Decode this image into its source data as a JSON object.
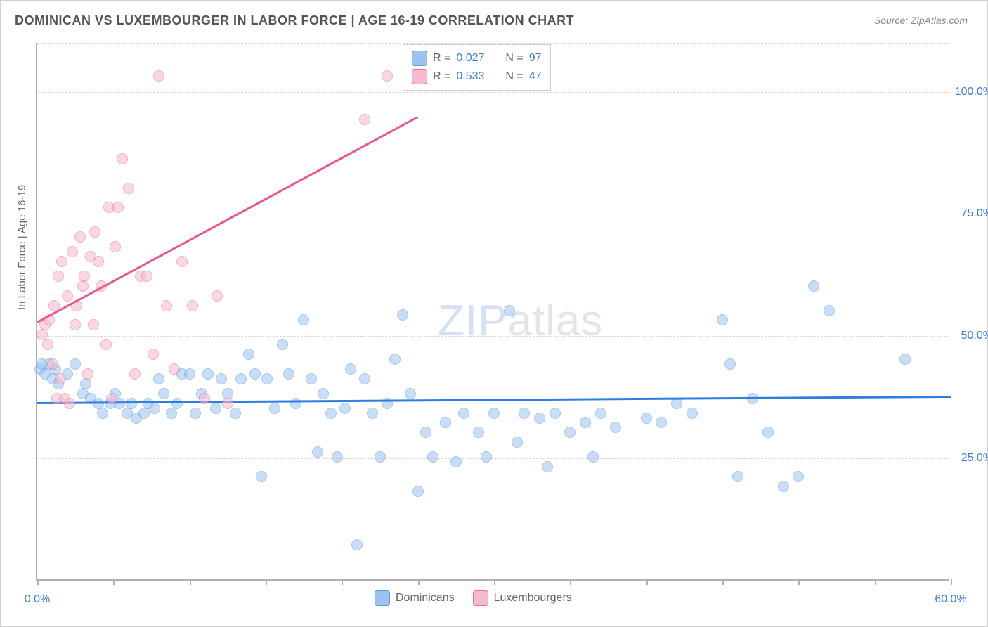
{
  "title": "DOMINICAN VS LUXEMBOURGER IN LABOR FORCE | AGE 16-19 CORRELATION CHART",
  "source": "Source: ZipAtlas.com",
  "ylabel": "In Labor Force | Age 16-19",
  "watermark_a": "ZIP",
  "watermark_b": "atlas",
  "chart": {
    "type": "scatter-with-trend",
    "background_color": "#ffffff",
    "grid_color": "#d8d8d8",
    "axis_color": "#b0b0b0",
    "xlim": [
      0,
      60
    ],
    "ylim": [
      0,
      110
    ],
    "x_ticks": [
      0,
      5,
      10,
      15,
      20,
      25,
      30,
      35,
      40,
      45,
      50,
      55,
      60
    ],
    "x_tick_labels": [
      {
        "v": 0,
        "label": "0.0%"
      },
      {
        "v": 60,
        "label": "60.0%"
      }
    ],
    "y_gridlines": [
      25,
      50,
      75,
      100,
      110
    ],
    "y_tick_labels": [
      {
        "v": 25,
        "label": "25.0%"
      },
      {
        "v": 50,
        "label": "50.0%"
      },
      {
        "v": 75,
        "label": "75.0%"
      },
      {
        "v": 100,
        "label": "100.0%"
      }
    ],
    "marker_radius": 8,
    "marker_opacity": 0.55,
    "series": [
      {
        "name": "Dominicans",
        "fill": "#9cc3f0",
        "stroke": "#5a9be0",
        "trend_color": "#2f7de0",
        "trend": {
          "x1": 0,
          "y1": 36.5,
          "x2": 60,
          "y2": 37.8
        },
        "stats": {
          "R": "0.027",
          "N": "97"
        },
        "points": [
          [
            0.2,
            43
          ],
          [
            0.3,
            44
          ],
          [
            0.5,
            42
          ],
          [
            0.8,
            44
          ],
          [
            1.0,
            41
          ],
          [
            1.2,
            43
          ],
          [
            1.4,
            40
          ],
          [
            2.0,
            42
          ],
          [
            2.5,
            44
          ],
          [
            3.0,
            38
          ],
          [
            3.2,
            40
          ],
          [
            3.5,
            37
          ],
          [
            4.0,
            36
          ],
          [
            4.3,
            34
          ],
          [
            4.8,
            36
          ],
          [
            5.1,
            38
          ],
          [
            5.4,
            36
          ],
          [
            5.9,
            34
          ],
          [
            6.2,
            36
          ],
          [
            6.5,
            33
          ],
          [
            7.0,
            34
          ],
          [
            7.3,
            36
          ],
          [
            7.7,
            35
          ],
          [
            8.0,
            41
          ],
          [
            8.3,
            38
          ],
          [
            8.8,
            34
          ],
          [
            9.2,
            36
          ],
          [
            9.5,
            42
          ],
          [
            10.0,
            42
          ],
          [
            10.4,
            34
          ],
          [
            10.8,
            38
          ],
          [
            11.2,
            42
          ],
          [
            11.7,
            35
          ],
          [
            12.1,
            41
          ],
          [
            12.5,
            38
          ],
          [
            13.0,
            34
          ],
          [
            13.4,
            41
          ],
          [
            13.9,
            46
          ],
          [
            14.3,
            42
          ],
          [
            14.7,
            21
          ],
          [
            15.1,
            41
          ],
          [
            15.6,
            35
          ],
          [
            16.1,
            48
          ],
          [
            16.5,
            42
          ],
          [
            17.0,
            36
          ],
          [
            17.5,
            53
          ],
          [
            18.0,
            41
          ],
          [
            18.4,
            26
          ],
          [
            18.8,
            38
          ],
          [
            19.3,
            34
          ],
          [
            19.7,
            25
          ],
          [
            20.2,
            35
          ],
          [
            20.6,
            43
          ],
          [
            21.0,
            7
          ],
          [
            21.5,
            41
          ],
          [
            22.0,
            34
          ],
          [
            22.5,
            25
          ],
          [
            23.0,
            36
          ],
          [
            23.5,
            45
          ],
          [
            24.0,
            54
          ],
          [
            24.5,
            38
          ],
          [
            25.0,
            18
          ],
          [
            25.5,
            30
          ],
          [
            26.0,
            25
          ],
          [
            26.8,
            32
          ],
          [
            27.5,
            24
          ],
          [
            28.0,
            34
          ],
          [
            29.0,
            30
          ],
          [
            29.5,
            25
          ],
          [
            30.0,
            34
          ],
          [
            31.0,
            55
          ],
          [
            31.5,
            28
          ],
          [
            32.0,
            34
          ],
          [
            33.0,
            33
          ],
          [
            33.5,
            23
          ],
          [
            34.0,
            34
          ],
          [
            35.0,
            30
          ],
          [
            36.0,
            32
          ],
          [
            36.5,
            25
          ],
          [
            37.0,
            34
          ],
          [
            38.0,
            31
          ],
          [
            40.0,
            33
          ],
          [
            41.0,
            32
          ],
          [
            42.0,
            36
          ],
          [
            43.0,
            34
          ],
          [
            45.0,
            53
          ],
          [
            45.5,
            44
          ],
          [
            46.0,
            21
          ],
          [
            47.0,
            37
          ],
          [
            48.0,
            30
          ],
          [
            49.0,
            19
          ],
          [
            50.0,
            21
          ],
          [
            51.0,
            60
          ],
          [
            52.0,
            55
          ],
          [
            57.0,
            45
          ]
        ]
      },
      {
        "name": "Luxembourgers",
        "fill": "#f7b9cd",
        "stroke": "#ec6b98",
        "trend_color": "#ec5690",
        "trend": {
          "x1": 0,
          "y1": 53,
          "x2": 25,
          "y2": 95
        },
        "stats": {
          "R": "0.533",
          "N": "47"
        },
        "points": [
          [
            0.3,
            50
          ],
          [
            0.5,
            52
          ],
          [
            0.7,
            48
          ],
          [
            0.8,
            53
          ],
          [
            1.0,
            44
          ],
          [
            1.1,
            56
          ],
          [
            1.3,
            37
          ],
          [
            1.4,
            62
          ],
          [
            1.5,
            41
          ],
          [
            1.6,
            65
          ],
          [
            1.8,
            37
          ],
          [
            2.0,
            58
          ],
          [
            2.1,
            36
          ],
          [
            2.3,
            67
          ],
          [
            2.5,
            52
          ],
          [
            2.6,
            56
          ],
          [
            2.8,
            70
          ],
          [
            3.0,
            60
          ],
          [
            3.1,
            62
          ],
          [
            3.3,
            42
          ],
          [
            3.5,
            66
          ],
          [
            3.7,
            52
          ],
          [
            3.8,
            71
          ],
          [
            4.0,
            65
          ],
          [
            4.2,
            60
          ],
          [
            4.5,
            48
          ],
          [
            4.7,
            76
          ],
          [
            4.9,
            37
          ],
          [
            5.1,
            68
          ],
          [
            5.3,
            76
          ],
          [
            5.6,
            86
          ],
          [
            6.0,
            80
          ],
          [
            6.4,
            42
          ],
          [
            6.8,
            62
          ],
          [
            7.2,
            62
          ],
          [
            7.6,
            46
          ],
          [
            8.0,
            103
          ],
          [
            8.5,
            56
          ],
          [
            9.0,
            43
          ],
          [
            9.5,
            65
          ],
          [
            10.2,
            56
          ],
          [
            11.0,
            37
          ],
          [
            11.8,
            58
          ],
          [
            12.5,
            36
          ],
          [
            21.5,
            94
          ],
          [
            23.0,
            103
          ]
        ]
      }
    ]
  },
  "legend_box": {
    "rows": [
      {
        "swatch_fill": "#9cc3f0",
        "swatch_stroke": "#5a9be0",
        "r_label": "R =",
        "r": "0.027",
        "n_label": "N =",
        "n": "97"
      },
      {
        "swatch_fill": "#f7b9cd",
        "swatch_stroke": "#ec6b98",
        "r_label": "R =",
        "r": "0.533",
        "n_label": "N =",
        "n": "47"
      }
    ]
  },
  "bottom_legend": [
    {
      "swatch_fill": "#9cc3f0",
      "swatch_stroke": "#5a9be0",
      "label": "Dominicans"
    },
    {
      "swatch_fill": "#f7b9cd",
      "swatch_stroke": "#ec6b98",
      "label": "Luxembourgers"
    }
  ]
}
